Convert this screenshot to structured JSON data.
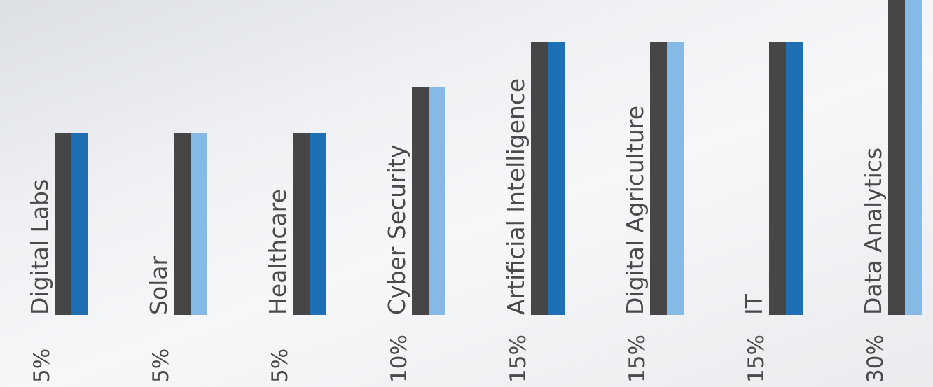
{
  "chart_data": {
    "type": "bar",
    "title": "",
    "xlabel": "",
    "ylabel": "",
    "categories": [
      "Digital Labs",
      "Solar",
      "Healthcare",
      "Cyber Security",
      "Artificial Intelligence",
      "Digital Agriculture",
      "IT",
      "Data Analytics"
    ],
    "values": [
      5,
      5,
      5,
      10,
      15,
      15,
      15,
      30
    ],
    "value_labels": [
      "5%",
      "5%",
      "5%",
      "10%",
      "15%",
      "15%",
      "15%",
      "30%"
    ],
    "ylim": [
      -15,
      31
    ],
    "grid": false,
    "legend": "none",
    "colors": {
      "dark": "#464646",
      "blue": "#1f6fb5",
      "light_blue": "#85b9e6",
      "text": "#4a4a4a"
    },
    "accent_sequence": [
      "blue",
      "light_blue",
      "blue",
      "light_blue",
      "blue",
      "light_blue",
      "blue",
      "light_blue"
    ]
  }
}
